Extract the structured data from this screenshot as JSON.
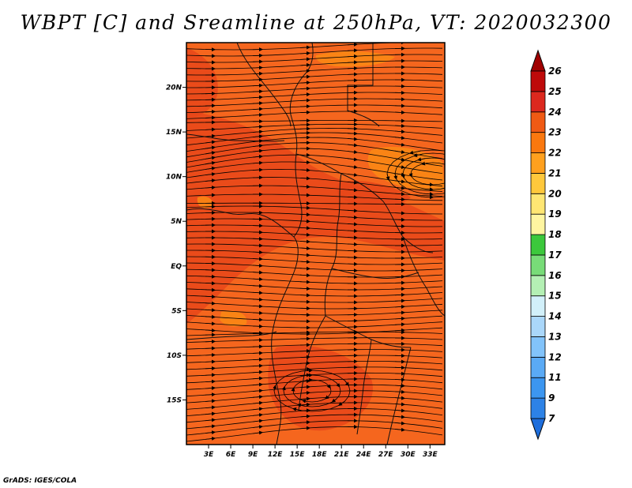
{
  "title": "WBPT [C] and Sreamline at 250hPa, VT: 2020032300",
  "credit": "GrADS: IGES/COLA",
  "map": {
    "lon_range": [
      0,
      35
    ],
    "lat_range": [
      -20,
      25
    ],
    "lon_ticks": [
      "3E",
      "6E",
      "9E",
      "12E",
      "15E",
      "18E",
      "21E",
      "24E",
      "27E",
      "30E",
      "33E"
    ],
    "lat_ticks": [
      "20N",
      "15N",
      "10N",
      "5N",
      "EQ",
      "5S",
      "10S",
      "15S"
    ],
    "fill_colors": {
      "24": "#e8461a",
      "23": "#f5661e",
      "22": "#fa8a14"
    }
  },
  "colorbar": {
    "labels": [
      "7",
      "9",
      "11",
      "12",
      "13",
      "14",
      "15",
      "16",
      "17",
      "18",
      "19",
      "20",
      "21",
      "22",
      "23",
      "24",
      "25",
      "26"
    ],
    "colors": [
      "#1e6edc",
      "#2d82e6",
      "#3c96f0",
      "#5aaaf5",
      "#82c3fa",
      "#aad7fa",
      "#d2f0fa",
      "#b4f0b4",
      "#78dc78",
      "#3cc83c",
      "#fff5a0",
      "#ffe673",
      "#ffc83c",
      "#ffa01e",
      "#fa780f",
      "#f05a14",
      "#dc281e",
      "#be0a0a",
      "#a00000"
    ]
  }
}
